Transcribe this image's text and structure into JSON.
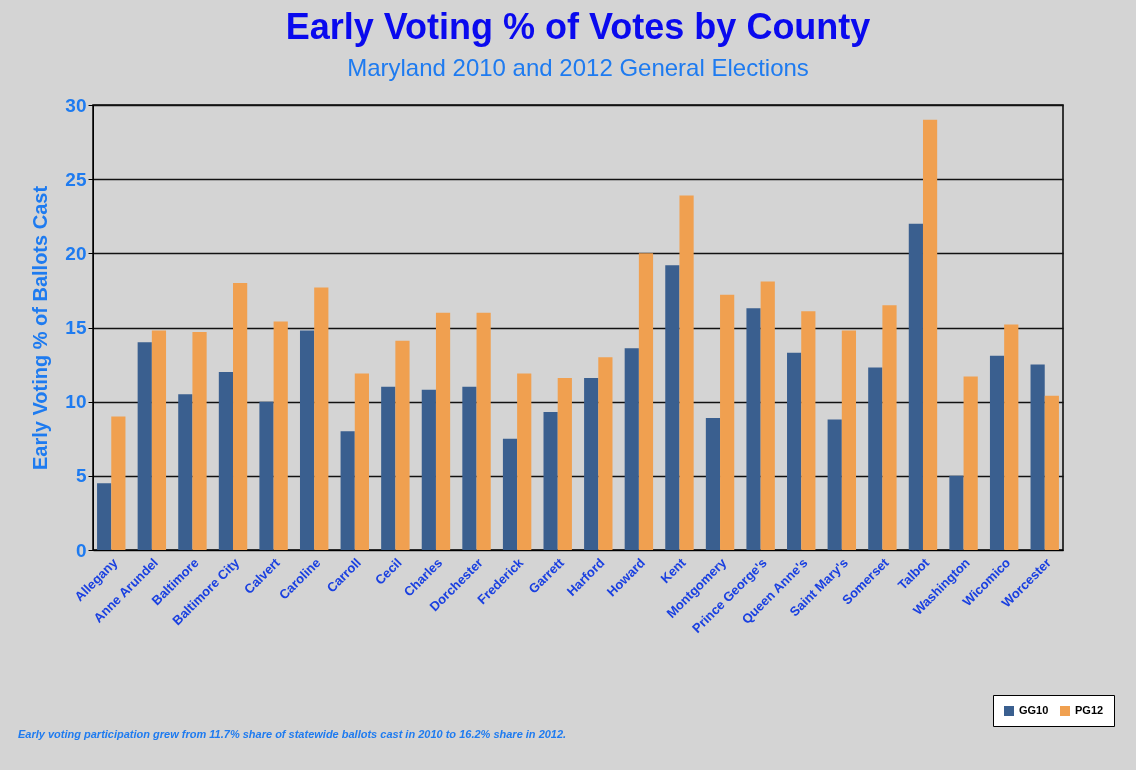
{
  "chart_data": {
    "type": "bar",
    "title": "Early Voting % of Votes by County",
    "subtitle": "Maryland 2010 and 2012 General Elections",
    "ylabel": "Early Voting % of Ballots Cast",
    "categories": [
      "Allegany",
      "Anne Arundel",
      "Baltimore",
      "Baltimore City",
      "Calvert",
      "Caroline",
      "Carroll",
      "Cecil",
      "Charles",
      "Dorchester",
      "Frederick",
      "Garrett",
      "Harford",
      "Howard",
      "Kent",
      "Montgomery",
      "Prince George's",
      "Queen Anne's",
      "Saint Mary's",
      "Somerset",
      "Talbot",
      "Washington",
      "Wicomico",
      "Worcester"
    ],
    "series": [
      {
        "name": "GG10",
        "color": "#3a5f8f",
        "values": [
          4.5,
          14.0,
          10.5,
          12.0,
          10.0,
          14.8,
          8.0,
          11.0,
          10.8,
          11.0,
          7.5,
          9.3,
          11.6,
          13.6,
          19.2,
          8.9,
          16.3,
          13.3,
          8.8,
          12.3,
          22.0,
          5.0,
          13.1,
          12.5
        ]
      },
      {
        "name": "PG12",
        "color": "#f0a050",
        "values": [
          9.0,
          14.8,
          14.7,
          18.0,
          15.4,
          17.7,
          11.9,
          14.1,
          16.0,
          16.0,
          11.9,
          11.6,
          13.0,
          20.0,
          23.9,
          17.2,
          18.1,
          16.1,
          14.8,
          16.5,
          29.0,
          11.7,
          15.2,
          10.4
        ]
      }
    ],
    "ylim": [
      0,
      30
    ],
    "yticks": [
      0,
      5,
      10,
      15,
      20,
      25,
      30
    ],
    "grid": "y",
    "legend": "bottom right",
    "annotations": [
      "Early voting participation grew from 11.7% share of statewide ballots cast in 2010 to 16.2% share in 2012."
    ]
  }
}
